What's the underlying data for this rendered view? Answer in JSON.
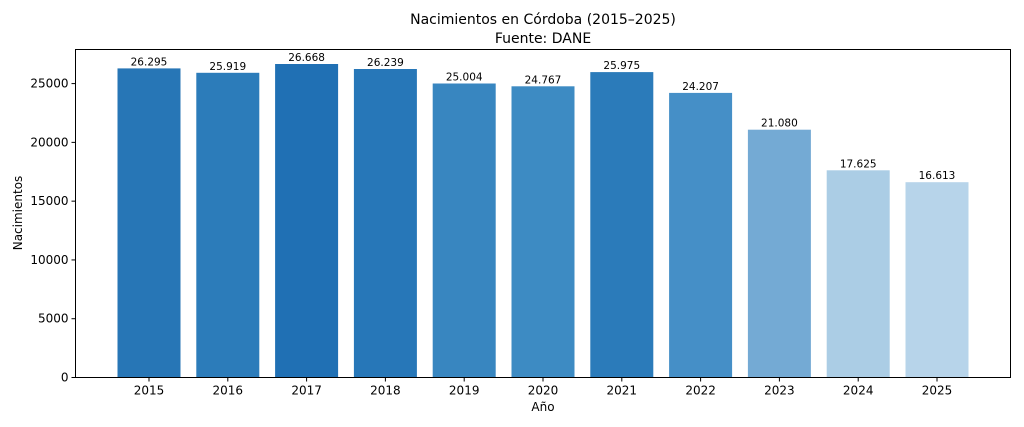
{
  "chart_data": {
    "type": "bar",
    "title": "Nacimientos en Córdoba (2015–2025)",
    "subtitle": "Fuente: DANE",
    "xlabel": "Año",
    "ylabel": "Nacimientos",
    "ylim": [
      0,
      27900
    ],
    "yticks": [
      0,
      5000,
      10000,
      15000,
      20000,
      25000
    ],
    "ytick_labels": [
      "0",
      "5000",
      "10000",
      "15000",
      "20000",
      "25000"
    ],
    "grid": false,
    "categories": [
      "2015",
      "2016",
      "2017",
      "2018",
      "2019",
      "2020",
      "2021",
      "2022",
      "2023",
      "2024",
      "2025"
    ],
    "values": [
      26295,
      25919,
      26668,
      26239,
      25004,
      24767,
      25975,
      24207,
      21080,
      17625,
      16613
    ],
    "data_labels": [
      "26.295",
      "25.919",
      "26.668",
      "26.239",
      "25.004",
      "24.767",
      "25.975",
      "24.207",
      "21.080",
      "17.625",
      "16.613"
    ],
    "colors": [
      "#2776b6",
      "#2c7cba",
      "#2070b4",
      "#2777b8",
      "#3886c0",
      "#3d8bc3",
      "#2b7bba",
      "#458fc7",
      "#74aad4",
      "#abcde5",
      "#b7d4ea"
    ]
  }
}
